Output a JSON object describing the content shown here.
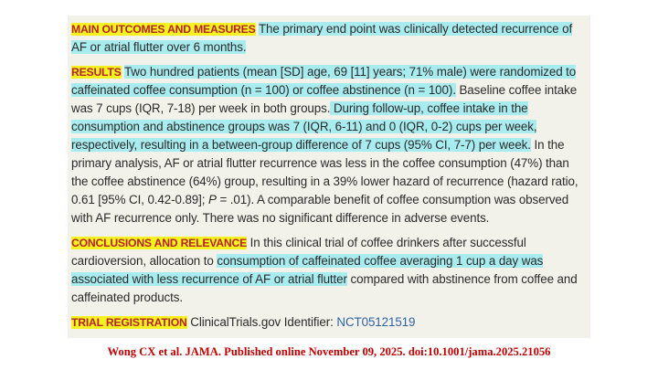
{
  "abstract": {
    "main_outcomes": {
      "heading": "MAIN OUTCOMES AND MEASURES",
      "text": "The primary end point was clinically detected recurrence of AF or atrial flutter over 6 months."
    },
    "results": {
      "heading": "RESULTS",
      "highlight_1": "Two hundred patients (mean [SD] age, 69 [11] years; 71% male) were randomized to caffeinated coffee consumption (n = 100) or coffee abstinence (n = 100).",
      "plain_1": " Baseline coffee intake was 7 cups (IQR, 7-18) per week in both groups.",
      "highlight_2": " During follow-up, coffee intake in the consumption and abstinence groups was 7 (IQR, 6-11) and 0 (IQR, 0-2) cups per week, respectively, resulting in a between-group difference of 7 cups (95% CI, 7-7) per week.",
      "plain_2": " In the primary analysis, AF or atrial flutter recurrence was less in the coffee consumption (47%) than the coffee abstinence (64%) group, resulting in a 39% lower hazard of recurrence (hazard ratio, 0.61 [95% CI, 0.42-0.89]; ",
      "p_label": "P",
      "p_value": " = .01).",
      "plain_3": " A comparable benefit of coffee consumption was observed with AF recurrence only. There was no significant difference in adverse events."
    },
    "conclusions": {
      "heading": "CONCLUSIONS AND RELEVANCE",
      "plain_1": " In this clinical trial of coffee drinkers after successful cardioversion, allocation to ",
      "highlight_1": "consumption of caffeinated coffee averaging 1 cup a day was associated with less recurrence of AF or atrial flutter",
      "plain_2": " compared with abstinence from coffee and caffeinated products."
    },
    "registration": {
      "heading": "TRIAL REGISTRATION",
      "text": " ClinicalTrials.gov Identifier: ",
      "identifier": "NCT05121519"
    }
  },
  "citation": "Wong CX et al. JAMA. Published online  November 09, 2025. doi:10.1001/jama.2025.21056",
  "colors": {
    "heading_text": "#b4232a",
    "heading_highlight": "#f7f21f",
    "text_highlight": "#a9ecef",
    "citation": "#c00000",
    "link": "#2f63a8"
  }
}
